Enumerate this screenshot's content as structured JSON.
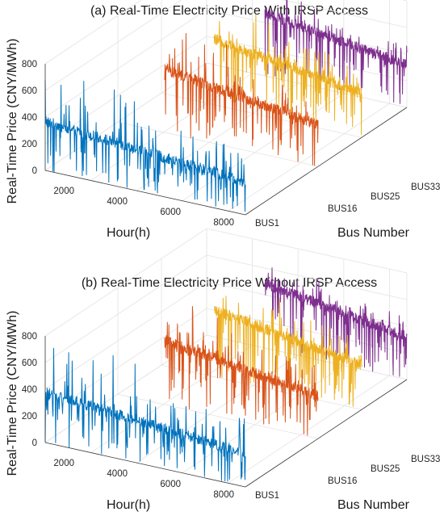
{
  "chart_data": [
    {
      "type": "line",
      "subtype": "3d-waterfall",
      "title": "(a) Real-Time Electricity Price With IRSP Access",
      "xlabel": "Hour(h)",
      "ylabel": "Bus Number",
      "zlabel": "Real-Time Price (CNY/MWh)",
      "x_ticks": [
        "2000",
        "4000",
        "6000",
        "8000"
      ],
      "y_ticks": [
        "BUS1",
        "BUS16",
        "BUS25",
        "BUS33"
      ],
      "z_ticks": [
        "0",
        "200",
        "400",
        "600",
        "800"
      ],
      "xlim": [
        0,
        8760
      ],
      "zlim": [
        0,
        800
      ],
      "grid": true,
      "series": [
        {
          "bus": "BUS1",
          "color": "#0072BD",
          "typical_price": 350,
          "max_price": 780,
          "min_price": 0
        },
        {
          "bus": "BUS16",
          "color": "#D95319",
          "typical_price": 450,
          "max_price": 780,
          "min_price": 0
        },
        {
          "bus": "BUS25",
          "color": "#EDB120",
          "typical_price": 470,
          "max_price": 800,
          "min_price": 0
        },
        {
          "bus": "BUS33",
          "color": "#7E2F8E",
          "typical_price": 450,
          "max_price": 620,
          "min_price": 0
        }
      ]
    },
    {
      "type": "line",
      "subtype": "3d-waterfall",
      "title": "(b) Real-Time Electricity Price Without IRSP Access",
      "xlabel": "Hour(h)",
      "ylabel": "Bus Number",
      "zlabel": "Real-Time Price (CNY/MWh)",
      "x_ticks": [
        "2000",
        "4000",
        "6000",
        "8000"
      ],
      "y_ticks": [
        "BUS1",
        "BUS16",
        "BUS25",
        "BUS33"
      ],
      "z_ticks": [
        "0",
        "200",
        "400",
        "600",
        "800"
      ],
      "xlim": [
        0,
        8760
      ],
      "zlim": [
        0,
        800
      ],
      "grid": true,
      "series": [
        {
          "bus": "BUS1",
          "color": "#0072BD",
          "typical_price": 360,
          "max_price": 780,
          "min_price": 0
        },
        {
          "bus": "BUS16",
          "color": "#D95319",
          "typical_price": 460,
          "max_price": 790,
          "min_price": 0
        },
        {
          "bus": "BUS25",
          "color": "#EDB120",
          "typical_price": 480,
          "max_price": 800,
          "min_price": 0
        },
        {
          "bus": "BUS33",
          "color": "#7E2F8E",
          "typical_price": 460,
          "max_price": 630,
          "min_price": 0
        }
      ]
    }
  ]
}
